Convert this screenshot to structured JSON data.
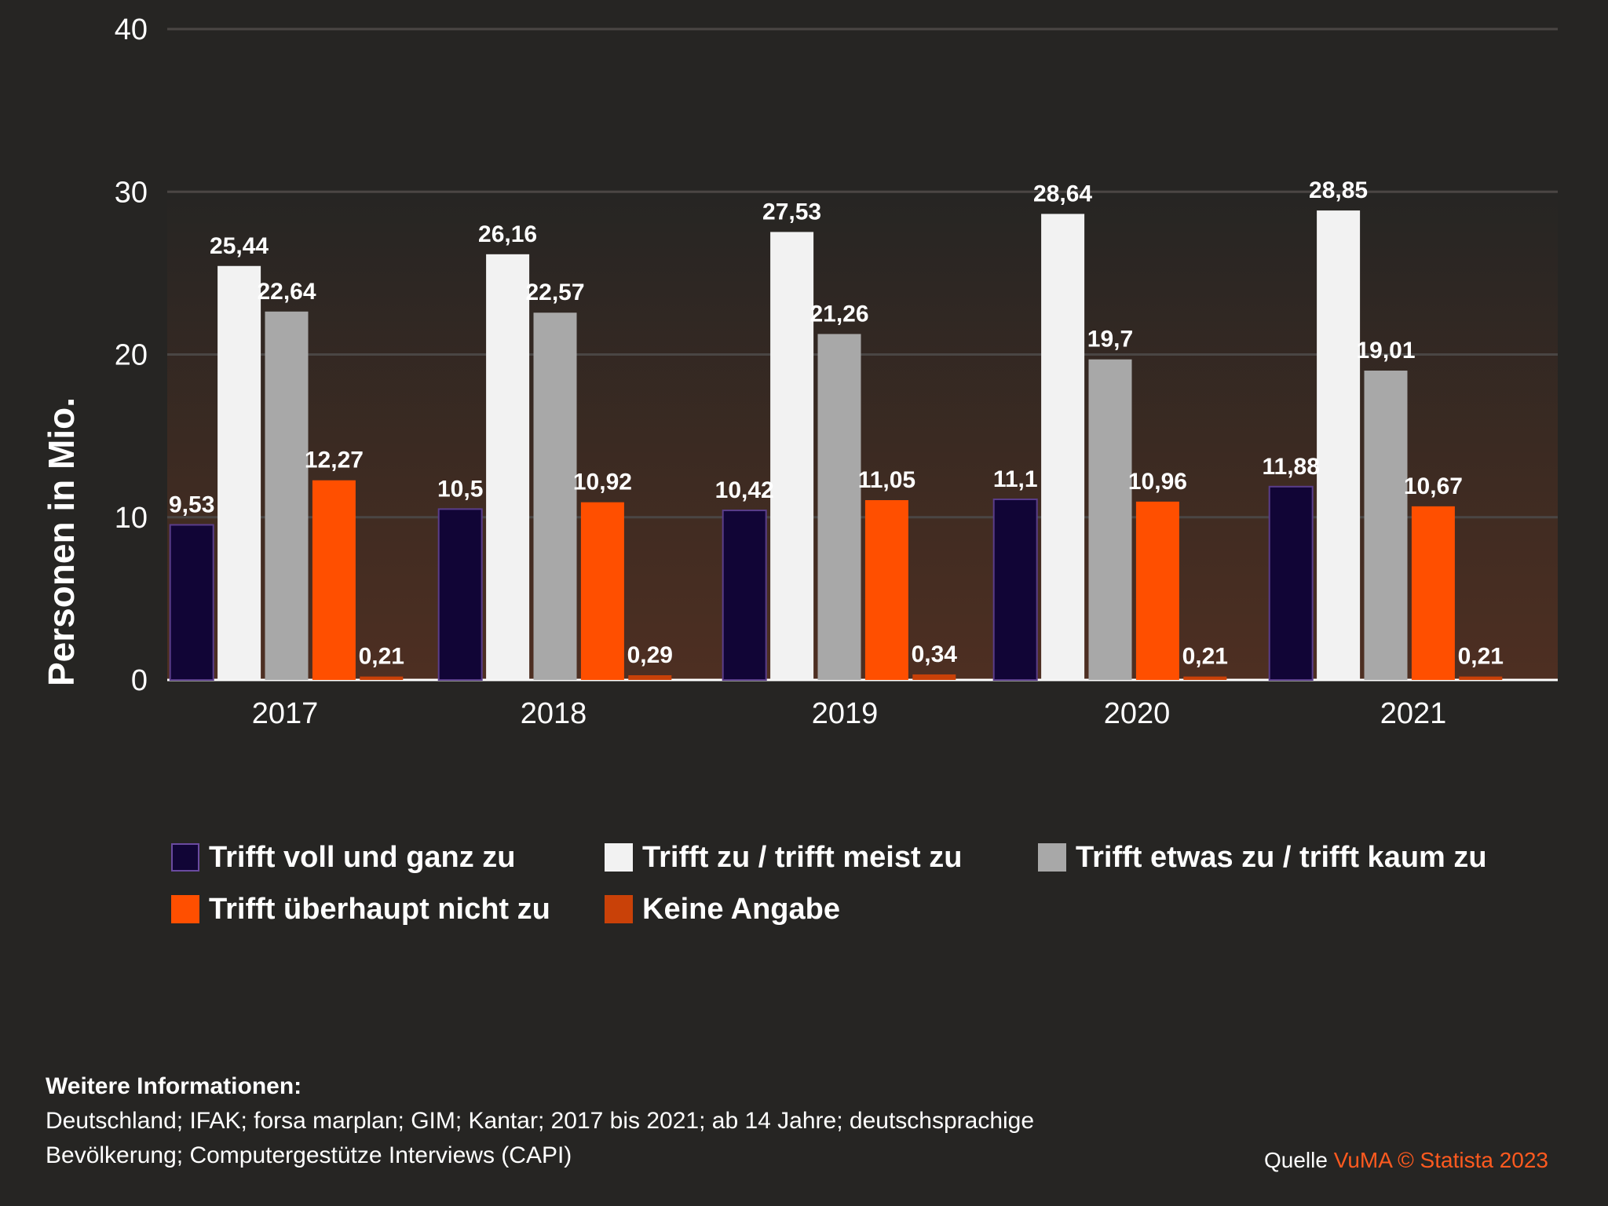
{
  "chart_data": {
    "type": "bar",
    "ylabel": "Personen in Mio.",
    "xlabel": "",
    "ylim": [
      0,
      40
    ],
    "yticks": [
      0,
      10,
      20,
      30,
      40
    ],
    "grid": true,
    "categories": [
      "2017",
      "2018",
      "2019",
      "2020",
      "2021"
    ],
    "series": [
      {
        "name": "Trifft voll und ganz zu",
        "color": "#110536",
        "values": [
          9.53,
          10.5,
          10.42,
          11.1,
          11.88
        ],
        "labels": [
          "9,53",
          "10,5",
          "10,42",
          "11,1",
          "11,88"
        ]
      },
      {
        "name": "Trifft zu / trifft meist zu",
        "color": "#f2f2f2",
        "values": [
          25.44,
          26.16,
          27.53,
          28.64,
          28.85
        ],
        "labels": [
          "25,44",
          "26,16",
          "27,53",
          "28,64",
          "28,85"
        ]
      },
      {
        "name": "Trifft etwas zu /  trifft kaum zu",
        "color": "#a8a8a8",
        "values": [
          22.64,
          22.57,
          21.26,
          19.7,
          19.01
        ],
        "labels": [
          "22,64",
          "22,57",
          "21,26",
          "19,7",
          "19,01"
        ]
      },
      {
        "name": "Trifft überhaupt nicht zu",
        "color": "#ff4f00",
        "values": [
          12.27,
          10.92,
          11.05,
          10.96,
          10.67
        ],
        "labels": [
          "12,27",
          "10,92",
          "11,05",
          "10,96",
          "10,67"
        ]
      },
      {
        "name": "Keine Angabe",
        "color": "#c94108",
        "values": [
          0.21,
          0.29,
          0.34,
          0.21,
          0.21
        ],
        "labels": [
          "0,21",
          "0,29",
          "0,34",
          "0,21",
          "0,21"
        ]
      }
    ],
    "legend_position": "bottom"
  },
  "info": {
    "title": "Weitere Informationen:",
    "line1": "Deutschland; IFAK; forsa marplan; GIM; Kantar; 2017 bis 2021; ab 14 Jahre; deutschsprachige",
    "line2": "Bevölkerung; Computergestütze Interviews (CAPI)"
  },
  "source": {
    "prefix": "Quelle",
    "link": "VuMA © Statista 2023"
  }
}
